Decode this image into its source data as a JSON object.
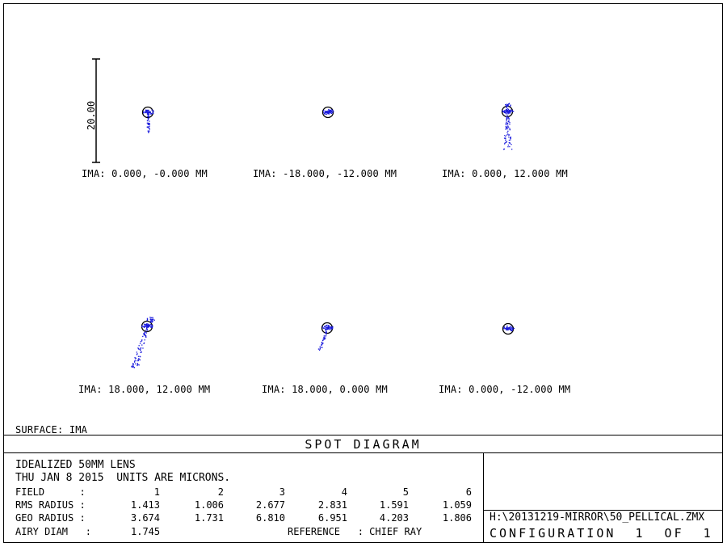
{
  "chart_data": {
    "type": "scatter",
    "title": "SPOT DIAGRAM",
    "scale_bar_label": "20.00",
    "units": "MICRONS",
    "surface": "SURFACE: IMA",
    "spots": [
      {
        "label": "IMA: 0.000, -0.000 MM",
        "shape": "tail-down",
        "rms": 1.413,
        "geo": 3.674
      },
      {
        "label": "IMA: -18.000, -12.000 MM",
        "shape": "compact",
        "rms": 1.006,
        "geo": 1.731
      },
      {
        "label": "IMA: 0.000, 12.000 MM",
        "shape": "long-tail-down",
        "rms": 2.677,
        "geo": 6.81
      },
      {
        "label": "IMA: 18.000, 12.000 MM",
        "shape": "long-tail-down-left",
        "rms": 2.831,
        "geo": 6.951
      },
      {
        "label": "IMA: 18.000, 0.000 MM",
        "shape": "tail-down-left",
        "rms": 1.591,
        "geo": 4.203
      },
      {
        "label": "IMA: 0.000, -12.000 MM",
        "shape": "compact",
        "rms": 1.059,
        "geo": 1.806
      }
    ],
    "airy_diam": 1.745
  },
  "info": {
    "line1": "IDEALIZED 50MM LENS",
    "line2": "THU JAN 8 2015  UNITS ARE MICRONS.",
    "field_label": "FIELD      :",
    "rms_label": "RMS RADIUS :",
    "geo_label": "GEO RADIUS :",
    "airy_label": "AIRY DIAM   :",
    "airy_value": "1.745",
    "fields": [
      "1",
      "2",
      "3",
      "4",
      "5",
      "6"
    ],
    "rms": [
      "1.413",
      "1.006",
      "2.677",
      "2.831",
      "1.591",
      "1.059"
    ],
    "geo": [
      "3.674",
      "1.731",
      "6.810",
      "6.951",
      "4.203",
      "1.806"
    ],
    "reference": "REFERENCE   : CHIEF RAY"
  },
  "file": {
    "path": "H:\\20131219-MIRROR\\50_PELLICAL.ZMX",
    "config": "CONFIGURATION  1  OF  1"
  },
  "colors": {
    "spot": "#1a1adc",
    "ink": "#000000"
  }
}
